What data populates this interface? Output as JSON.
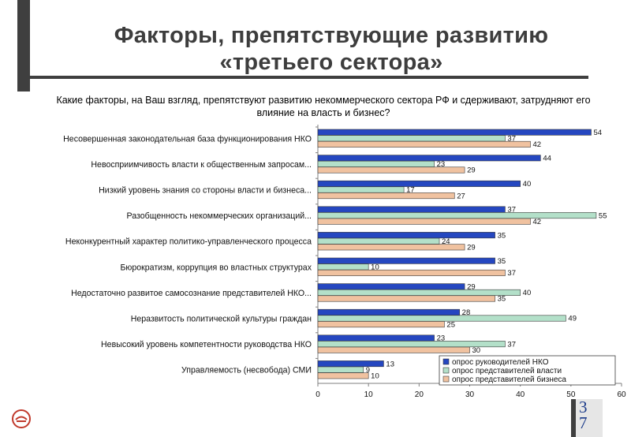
{
  "slide": {
    "title": "Факторы, препятствующие развитию «третьего сектора»",
    "page_number": "37"
  },
  "chart_data": {
    "type": "bar",
    "orientation": "horizontal",
    "title": "Какие факторы, на Ваш взгляд, препятствуют развитию некоммерческого сектора РФ и сдерживают, затрудняют его влияние на власть и бизнес?",
    "categories": [
      "Несовершенная законодательная база функционирования НКО",
      "Невосприимчивость власти к общественным запросам...",
      "Низкий уровень знания со стороны власти и бизнеса...",
      "Разобщенность некоммерческих организаций...",
      "Неконкурентный характер политико-управленческого процесса",
      "Бюрократизм, коррупция во властных структурах",
      "Недостаточно развитое самосознание представителей НКО...",
      "Неразвитость политической культуры граждан",
      "Невысокий уровень компетентности руководства НКО",
      "Управляемость (несвобода) СМИ"
    ],
    "series": [
      {
        "name": "опрос руководителей НКО",
        "color": "#2547c0",
        "values": [
          54,
          44,
          40,
          37,
          35,
          35,
          29,
          28,
          23,
          13
        ]
      },
      {
        "name": "опрос представителей власти",
        "color": "#b3e0c9",
        "values": [
          37,
          23,
          17,
          55,
          24,
          10,
          40,
          49,
          37,
          9
        ]
      },
      {
        "name": "опрос представителей бизнеса",
        "color": "#f0c2a0",
        "values": [
          42,
          29,
          27,
          42,
          29,
          37,
          35,
          25,
          30,
          10
        ]
      }
    ],
    "xlim": [
      0,
      60
    ],
    "xticks": [
      "0",
      "10",
      "20",
      "30",
      "40",
      "50",
      "60"
    ],
    "legend_position": "bottom-right",
    "grid": false
  }
}
